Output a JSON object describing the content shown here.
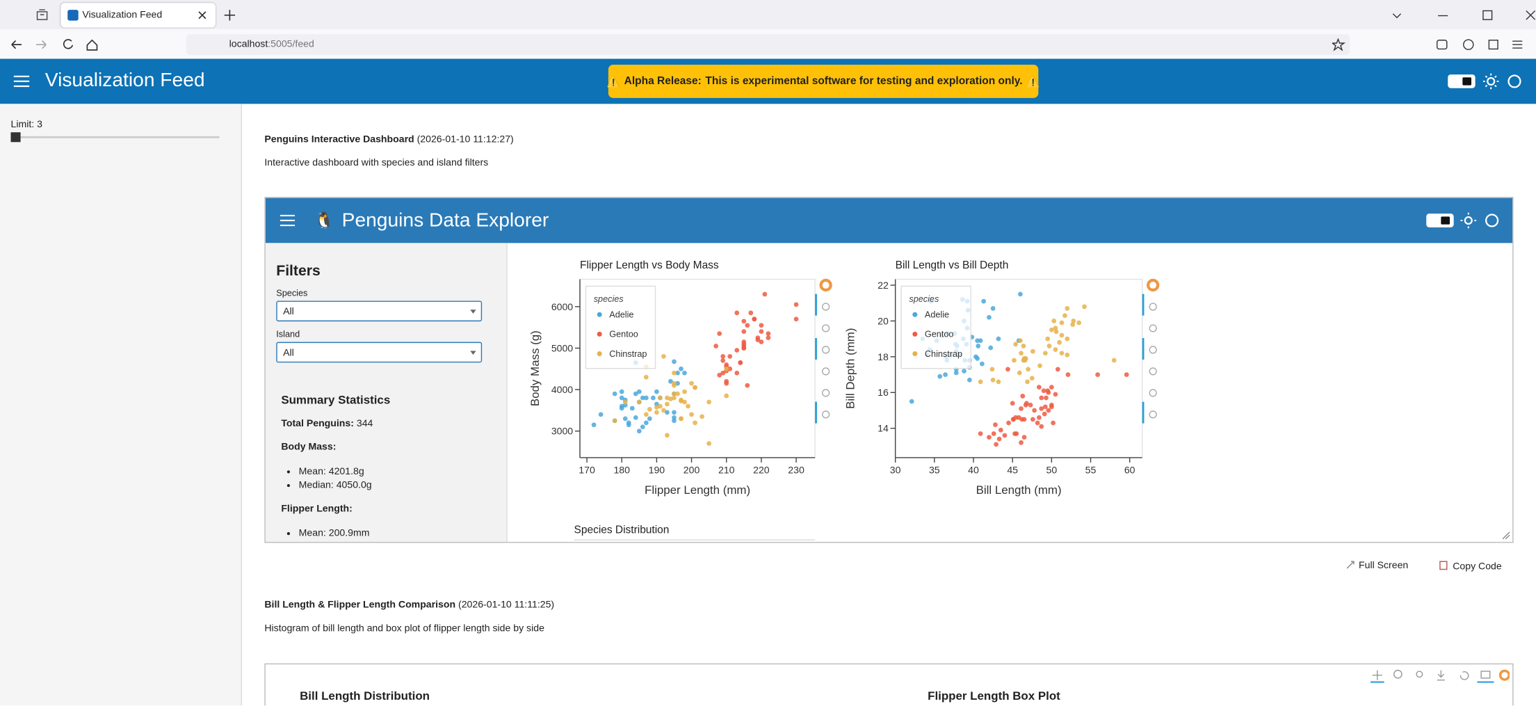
{
  "browser": {
    "tab_title": "Visualization Feed",
    "url_host": "localhost",
    "url_rest": ":5005/feed"
  },
  "app": {
    "title": "Visualization Feed",
    "banner_icon": "⚠️",
    "banner_bold": "Alpha Release:",
    "banner_text": "This is experimental software for testing and exploration only."
  },
  "sidebar": {
    "limit_label": "Limit: 3"
  },
  "feed": [
    {
      "title": "Penguins Interactive Dashboard",
      "timestamp": "(2026-01-10 11:12:27)",
      "description": "Interactive dashboard with species and island filters",
      "actions": [
        "Full Screen",
        "Copy Code"
      ]
    },
    {
      "title": "Bill Length & Flipper Length Comparison",
      "timestamp": "(2026-01-10 11:11:25)",
      "description": "Histogram of bill length and box plot of flipper length side by side"
    }
  ],
  "dashboard": {
    "icon": "🐧",
    "title": "Penguins Data Explorer",
    "filters_title": "Filters",
    "filters": [
      {
        "label": "Species",
        "value": "All"
      },
      {
        "label": "Island",
        "value": "All"
      }
    ],
    "summary_title": "Summary Statistics",
    "total_label": "Total Penguins:",
    "total_value": 344,
    "groups": [
      {
        "label": "Body Mass:",
        "items": [
          "Mean: 4201.8g",
          "Median: 4050.0g"
        ]
      },
      {
        "label": "Flipper Length:",
        "items": [
          "Mean: 200.9mm"
        ]
      }
    ]
  },
  "chart_data": [
    {
      "type": "scatter",
      "title": "Flipper Length vs Body Mass",
      "x_label": "Flipper Length (mm)",
      "y_label": "Body Mass (g)",
      "legend_title": "species",
      "legend": "top-left",
      "xlim": [
        168,
        235.4
      ],
      "ylim": [
        2360,
        6660
      ],
      "xticks": [
        170,
        180,
        190,
        200,
        210,
        220,
        230
      ],
      "yticks": [
        3000,
        4000,
        5000,
        6000
      ],
      "series": [
        {
          "name": "Adelie",
          "color": "#4aa8dc",
          "x": [
            181,
            186,
            195,
            193,
            190,
            181,
            195,
            182,
            191,
            198,
            185,
            195,
            197,
            184,
            194,
            174,
            180,
            189,
            185,
            180,
            187,
            183,
            187,
            172,
            180,
            178,
            178,
            188,
            184,
            195,
            196,
            190,
            180,
            181,
            184,
            182,
            195,
            186,
            196,
            185
          ],
          "values": [
            3750,
            3800,
            3250,
            3450,
            3650,
            3625,
            4675,
            3200,
            3800,
            4400,
            3700,
            3450,
            4500,
            3325,
            4200,
            3400,
            3600,
            3800,
            3950,
            3800,
            3800,
            3550,
            3200,
            3150,
            3950,
            3250,
            3900,
            3300,
            3900,
            3325,
            4150,
            3950,
            3550,
            3300,
            4650,
            3150,
            3900,
            3100,
            4400,
            3000
          ]
        },
        {
          "name": "Gentoo",
          "color": "#ee5a42",
          "x": [
            211,
            230,
            210,
            218,
            215,
            210,
            211,
            219,
            209,
            215,
            214,
            216,
            214,
            213,
            210,
            217,
            210,
            221,
            209,
            222,
            218,
            215,
            213,
            215,
            215,
            215,
            216,
            215,
            210,
            220,
            222,
            209,
            207,
            230,
            220,
            220,
            213,
            219,
            208,
            208
          ],
          "values": [
            4500,
            5700,
            4450,
            5700,
            5400,
            4550,
            4800,
            5200,
            4400,
            5150,
            4650,
            5550,
            4650,
            5850,
            4200,
            5850,
            4150,
            6300,
            4800,
            5350,
            5700,
            5000,
            4400,
            5050,
            5000,
            5100,
            4100,
            5650,
            4600,
            5550,
            5250,
            4700,
            5050,
            6050,
            5150,
            5400,
            4950,
            5250,
            4350,
            5350
          ]
        },
        {
          "name": "Chinstrap",
          "color": "#e6b24a",
          "x": [
            192,
            196,
            193,
            188,
            197,
            198,
            178,
            197,
            195,
            198,
            193,
            194,
            185,
            201,
            190,
            201,
            197,
            181,
            190,
            195,
            191,
            187,
            193,
            195,
            197,
            200,
            200,
            191,
            205,
            187,
            201,
            187,
            203,
            195,
            199,
            195,
            210,
            192,
            205,
            210
          ],
          "values": [
            3500,
            3900,
            3650,
            3525,
            3725,
            3950,
            3250,
            3750,
            4150,
            3700,
            3800,
            3775,
            3700,
            4050,
            3575,
            4050,
            3300,
            3700,
            3450,
            4400,
            3600,
            3400,
            2900,
            3800,
            3300,
            4150,
            3400,
            3800,
            3700,
            4550,
            3200,
            4300,
            3350,
            4100,
            3600,
            3900,
            3850,
            4800,
            2700,
            4500
          ]
        }
      ]
    },
    {
      "type": "scatter",
      "title": "Bill Length vs Bill Depth",
      "x_label": "Bill Length (mm)",
      "y_label": "Bill Depth (mm)",
      "legend_title": "species",
      "legend": "top-left",
      "xlim": [
        30,
        61.6
      ],
      "ylim": [
        12.36,
        22.33
      ],
      "xticks": [
        30,
        35,
        40,
        45,
        50,
        55,
        60
      ],
      "yticks": [
        14,
        16,
        18,
        20,
        22
      ],
      "series": [
        {
          "name": "Adelie",
          "color": "#4aa8dc",
          "x": [
            39.1,
            39.5,
            40.3,
            36.7,
            39.3,
            38.9,
            39.2,
            34.1,
            42.0,
            37.8,
            37.8,
            41.1,
            38.6,
            34.6,
            36.6,
            38.7,
            42.5,
            34.4,
            46.0,
            37.8,
            37.7,
            35.9,
            38.2,
            38.8,
            35.3,
            40.6,
            40.5,
            37.9,
            40.5,
            39.5,
            37.2,
            39.5,
            40.9,
            36.4,
            39.2,
            38.8,
            42.2,
            37.6,
            39.8,
            36.5,
            32.1,
            33.5,
            45.8,
            41.3,
            43.2,
            35.7
          ],
          "values": [
            18.7,
            17.4,
            18.0,
            19.3,
            20.6,
            17.8,
            19.6,
            18.1,
            20.2,
            17.1,
            17.3,
            17.6,
            21.2,
            21.1,
            17.8,
            19.0,
            20.7,
            18.4,
            21.5,
            18.3,
            18.7,
            19.2,
            18.1,
            17.2,
            18.9,
            18.6,
            17.9,
            18.6,
            18.9,
            16.7,
            18.1,
            17.8,
            18.9,
            17.0,
            21.1,
            20.0,
            18.5,
            19.3,
            19.1,
            18.0,
            15.5,
            19.0,
            18.9,
            21.1,
            19.0,
            16.9
          ]
        },
        {
          "name": "Gentoo",
          "color": "#ee5a42",
          "x": [
            46.1,
            50.0,
            48.7,
            50.0,
            47.6,
            46.5,
            45.4,
            46.7,
            43.3,
            46.8,
            40.9,
            49.0,
            45.5,
            48.4,
            45.8,
            49.3,
            42.0,
            49.2,
            46.2,
            48.7,
            50.2,
            45.1,
            46.5,
            46.3,
            42.9,
            46.1,
            44.5,
            47.8,
            48.2,
            50.0,
            47.3,
            42.8,
            45.1,
            59.6,
            49.1,
            48.4,
            42.6,
            44.4,
            44.0,
            48.7,
            49.6,
            45.3,
            49.6,
            50.5,
            43.5,
            50.8,
            52.1,
            55.9,
            49.5,
            45.0
          ],
          "values": [
            13.2,
            16.3,
            14.1,
            15.2,
            14.5,
            13.5,
            14.6,
            15.3,
            13.4,
            15.4,
            13.7,
            16.1,
            13.7,
            14.6,
            14.6,
            15.7,
            13.5,
            15.2,
            14.5,
            15.1,
            14.3,
            14.5,
            14.5,
            15.8,
            13.1,
            15.1,
            14.3,
            15.0,
            14.3,
            15.3,
            15.3,
            14.2,
            14.5,
            17.0,
            14.8,
            16.3,
            13.7,
            17.3,
            13.6,
            15.7,
            16.0,
            13.7,
            15.0,
            15.9,
            13.9,
            17.3,
            17.0,
            17.0,
            16.1,
            15.4
          ]
        },
        {
          "name": "Chinstrap",
          "color": "#e6b24a",
          "x": [
            46.5,
            50.0,
            51.3,
            45.4,
            52.7,
            45.2,
            46.1,
            51.3,
            46.0,
            51.3,
            46.6,
            51.7,
            47.0,
            52.0,
            45.9,
            50.5,
            50.3,
            58.0,
            46.4,
            49.2,
            42.4,
            48.5,
            43.2,
            50.6,
            46.7,
            52.0,
            50.5,
            49.5,
            46.4,
            52.8,
            40.9,
            54.2,
            42.5,
            51.0,
            49.7,
            47.5,
            47.6,
            52.0,
            46.9,
            53.5
          ],
          "values": [
            17.9,
            19.5,
            19.2,
            18.7,
            19.8,
            17.8,
            18.2,
            18.2,
            18.9,
            19.9,
            17.8,
            20.3,
            17.3,
            18.1,
            17.1,
            19.6,
            20.0,
            17.8,
            18.6,
            18.2,
            17.3,
            17.5,
            16.6,
            19.4,
            17.9,
            19.0,
            18.4,
            19.0,
            17.8,
            20.0,
            16.6,
            20.8,
            16.7,
            18.8,
            18.6,
            16.8,
            18.3,
            20.7,
            16.6,
            19.9
          ]
        }
      ]
    },
    {
      "type": "bar",
      "title": "Species Distribution"
    },
    {
      "type": "histogram",
      "title": "Bill Length Distribution"
    },
    {
      "type": "box",
      "title": "Flipper Length Box Plot"
    }
  ]
}
